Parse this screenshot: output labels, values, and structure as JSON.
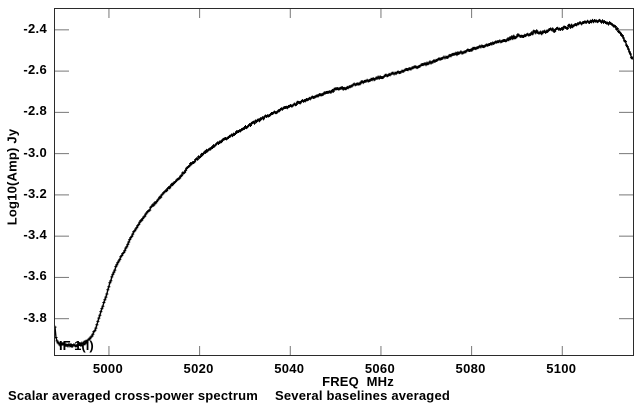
{
  "figure": {
    "background": "#ffffff",
    "caption_left": "Scalar averaged cross-power spectrum",
    "caption_right": "Several baselines averaged"
  },
  "chart_data": {
    "type": "line",
    "title": "",
    "xlabel": "FREQ  MHz",
    "ylabel": "Log10(Amp) Jy",
    "xlim": [
      4988.1,
      5115.6
    ],
    "ylim": [
      -3.976,
      -2.299
    ],
    "x_ticks": [
      5000,
      5020,
      5040,
      5060,
      5080,
      5100
    ],
    "x_tick_labels": [
      "5000",
      "5020",
      "5040",
      "5060",
      "5080",
      "5100"
    ],
    "y_ticks": [
      -2.4,
      -2.6,
      -2.8,
      -3.0,
      -3.2,
      -3.4,
      -3.6,
      -3.8
    ],
    "y_tick_labels": [
      "-2.4",
      "-2.6",
      "-2.8",
      "-3.0",
      "-3.2",
      "-3.4",
      "-3.6",
      "-3.8"
    ],
    "grid": false,
    "legend": "none",
    "marker": "plus",
    "line_color": "#000000",
    "frame_color": "#2b2b2b",
    "tick_color": "#777777",
    "channel_step_mhz": 0.22,
    "annotations": [
      {
        "text": "IF 1(l)",
        "x": 4989.2,
        "y": -3.935
      }
    ],
    "series": [
      {
        "name": "scalar averaged cross-power spectrum",
        "points": [
          [
            4988.1,
            -3.845
          ],
          [
            4988.4,
            -3.9
          ],
          [
            4989.0,
            -3.922
          ],
          [
            4990.0,
            -3.928
          ],
          [
            4991.2,
            -3.93
          ],
          [
            4992.5,
            -3.93
          ],
          [
            4993.8,
            -3.925
          ],
          [
            4994.9,
            -3.915
          ],
          [
            4996.0,
            -3.892
          ],
          [
            4997.1,
            -3.85
          ],
          [
            4998.2,
            -3.77
          ],
          [
            4999.3,
            -3.696
          ],
          [
            5000.4,
            -3.614
          ],
          [
            5001.5,
            -3.552
          ],
          [
            5002.6,
            -3.504
          ],
          [
            5004.0,
            -3.446
          ],
          [
            5005.3,
            -3.388
          ],
          [
            5006.6,
            -3.34
          ],
          [
            5007.9,
            -3.3
          ],
          [
            5009.3,
            -3.262
          ],
          [
            5010.8,
            -3.224
          ],
          [
            5012.3,
            -3.186
          ],
          [
            5014.1,
            -3.147
          ],
          [
            5015.9,
            -3.108
          ],
          [
            5018.1,
            -3.05
          ],
          [
            5020.3,
            -3.01
          ],
          [
            5022.9,
            -2.965
          ],
          [
            5025.6,
            -2.93
          ],
          [
            5029.1,
            -2.885
          ],
          [
            5032.6,
            -2.843
          ],
          [
            5036.1,
            -2.805
          ],
          [
            5040.1,
            -2.768
          ],
          [
            5044.5,
            -2.73
          ],
          [
            5048.9,
            -2.698
          ],
          [
            5051.3,
            -2.68
          ],
          [
            5052.2,
            -2.688
          ],
          [
            5053.3,
            -2.671
          ],
          [
            5057.7,
            -2.643
          ],
          [
            5062.1,
            -2.617
          ],
          [
            5066.5,
            -2.59
          ],
          [
            5070.9,
            -2.558
          ],
          [
            5075.3,
            -2.525
          ],
          [
            5079.7,
            -2.497
          ],
          [
            5084.1,
            -2.468
          ],
          [
            5087.4,
            -2.452
          ],
          [
            5089.0,
            -2.44
          ],
          [
            5090.7,
            -2.425
          ],
          [
            5092.0,
            -2.43
          ],
          [
            5093.2,
            -2.415
          ],
          [
            5094.5,
            -2.408
          ],
          [
            5095.6,
            -2.412
          ],
          [
            5097.0,
            -2.403
          ],
          [
            5098.5,
            -2.4
          ],
          [
            5100.0,
            -2.392
          ],
          [
            5101.8,
            -2.383
          ],
          [
            5103.5,
            -2.372
          ],
          [
            5105.3,
            -2.363
          ],
          [
            5107.0,
            -2.358
          ],
          [
            5108.5,
            -2.359
          ],
          [
            5109.8,
            -2.365
          ],
          [
            5111.0,
            -2.374
          ],
          [
            5112.2,
            -2.398
          ],
          [
            5113.1,
            -2.425
          ],
          [
            5114.0,
            -2.462
          ],
          [
            5114.7,
            -2.5
          ],
          [
            5115.1,
            -2.525
          ],
          [
            5115.4,
            -2.538
          ],
          [
            5115.6,
            -2.53
          ]
        ]
      }
    ]
  }
}
